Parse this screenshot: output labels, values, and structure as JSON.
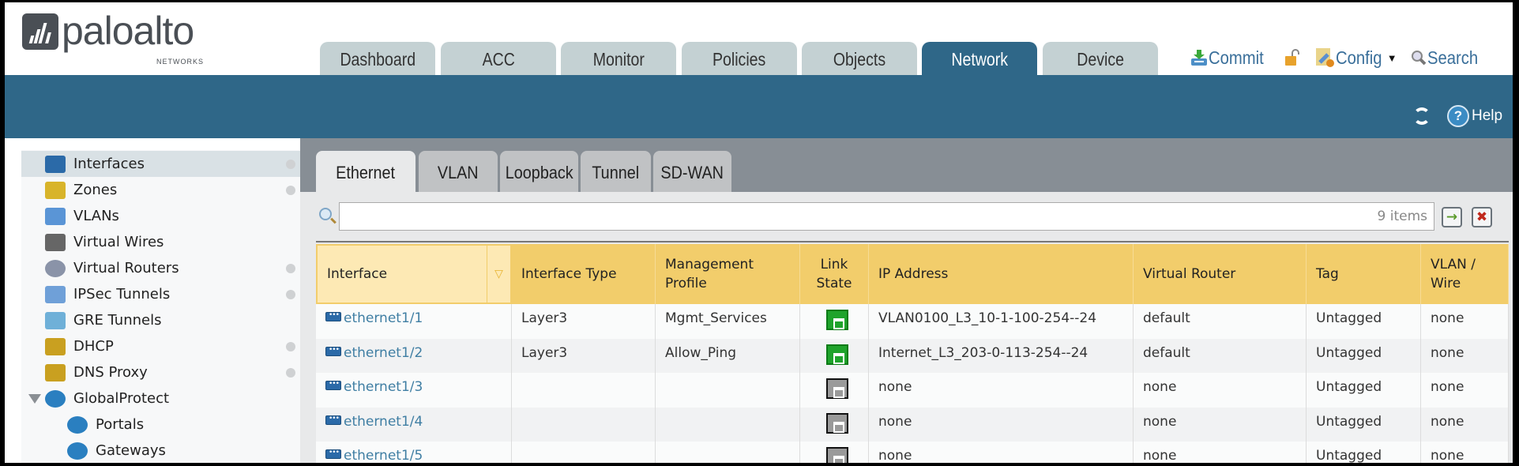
{
  "brand": {
    "name": "paloalto",
    "sub": "NETWORKS"
  },
  "nav": {
    "tabs": [
      {
        "label": "Dashboard"
      },
      {
        "label": "ACC"
      },
      {
        "label": "Monitor"
      },
      {
        "label": "Policies"
      },
      {
        "label": "Objects"
      },
      {
        "label": "Network",
        "active": true
      },
      {
        "label": "Device"
      }
    ]
  },
  "actions": {
    "commit": "Commit",
    "config": "Config",
    "search": "Search",
    "help": "Help"
  },
  "sidebar": {
    "items": [
      {
        "label": "Interfaces",
        "icon": "interfaces-icon",
        "dot": true,
        "selected": true
      },
      {
        "label": "Zones",
        "icon": "zones-icon",
        "dot": true
      },
      {
        "label": "VLANs",
        "icon": "vlans-icon",
        "dot": false
      },
      {
        "label": "Virtual Wires",
        "icon": "virtual-wires-icon",
        "dot": false
      },
      {
        "label": "Virtual Routers",
        "icon": "virtual-routers-icon",
        "dot": true
      },
      {
        "label": "IPSec Tunnels",
        "icon": "ipsec-tunnels-icon",
        "dot": true
      },
      {
        "label": "GRE Tunnels",
        "icon": "gre-tunnels-icon",
        "dot": false
      },
      {
        "label": "DHCP",
        "icon": "dhcp-icon",
        "dot": true
      },
      {
        "label": "DNS Proxy",
        "icon": "dns-proxy-icon",
        "dot": true
      },
      {
        "label": "GlobalProtect",
        "icon": "globalprotect-icon",
        "dot": false,
        "expanded": true
      },
      {
        "label": "Portals",
        "icon": "portals-icon",
        "dot": false,
        "child": true
      },
      {
        "label": "Gateways",
        "icon": "gateways-icon",
        "dot": false,
        "child": true
      }
    ]
  },
  "subtabs": [
    {
      "label": "Ethernet",
      "active": true
    },
    {
      "label": "VLAN"
    },
    {
      "label": "Loopback"
    },
    {
      "label": "Tunnel"
    },
    {
      "label": "SD-WAN"
    }
  ],
  "filter": {
    "value": "",
    "count": "9 items"
  },
  "table": {
    "columns": [
      "Interface",
      "Interface Type",
      "Management Profile",
      "Link State",
      "IP Address",
      "Virtual Router",
      "Tag",
      "VLAN / Virtual Wire"
    ],
    "columns_display": [
      "Interface",
      "Interface Type",
      "Management\nProfile",
      "Link\nState",
      "IP Address",
      "Virtual Router",
      "Tag",
      "VLAN / \nWire"
    ],
    "rows": [
      {
        "interface": "ethernet1/1",
        "type": "Layer3",
        "profile": "Mgmt_Services",
        "link": "up",
        "ip": "VLAN0100_L3_10-1-100-254--24",
        "vr": "default",
        "tag": "Untagged",
        "vlan": "none"
      },
      {
        "interface": "ethernet1/2",
        "type": "Layer3",
        "profile": "Allow_Ping",
        "link": "up",
        "ip": "Internet_L3_203-0-113-254--24",
        "vr": "default",
        "tag": "Untagged",
        "vlan": "none"
      },
      {
        "interface": "ethernet1/3",
        "type": "",
        "profile": "",
        "link": "down",
        "ip": "none",
        "vr": "none",
        "tag": "Untagged",
        "vlan": "none"
      },
      {
        "interface": "ethernet1/4",
        "type": "",
        "profile": "",
        "link": "down",
        "ip": "none",
        "vr": "none",
        "tag": "Untagged",
        "vlan": "none"
      },
      {
        "interface": "ethernet1/5",
        "type": "",
        "profile": "",
        "link": "down",
        "ip": "none",
        "vr": "none",
        "tag": "Untagged",
        "vlan": "none"
      }
    ]
  },
  "colors": {
    "accent": "#2f6788",
    "header_row": "#f2cd6b",
    "link_up": "#1fa32b",
    "link_down": "#9a9a9a",
    "link_text": "#3f7ea3"
  }
}
